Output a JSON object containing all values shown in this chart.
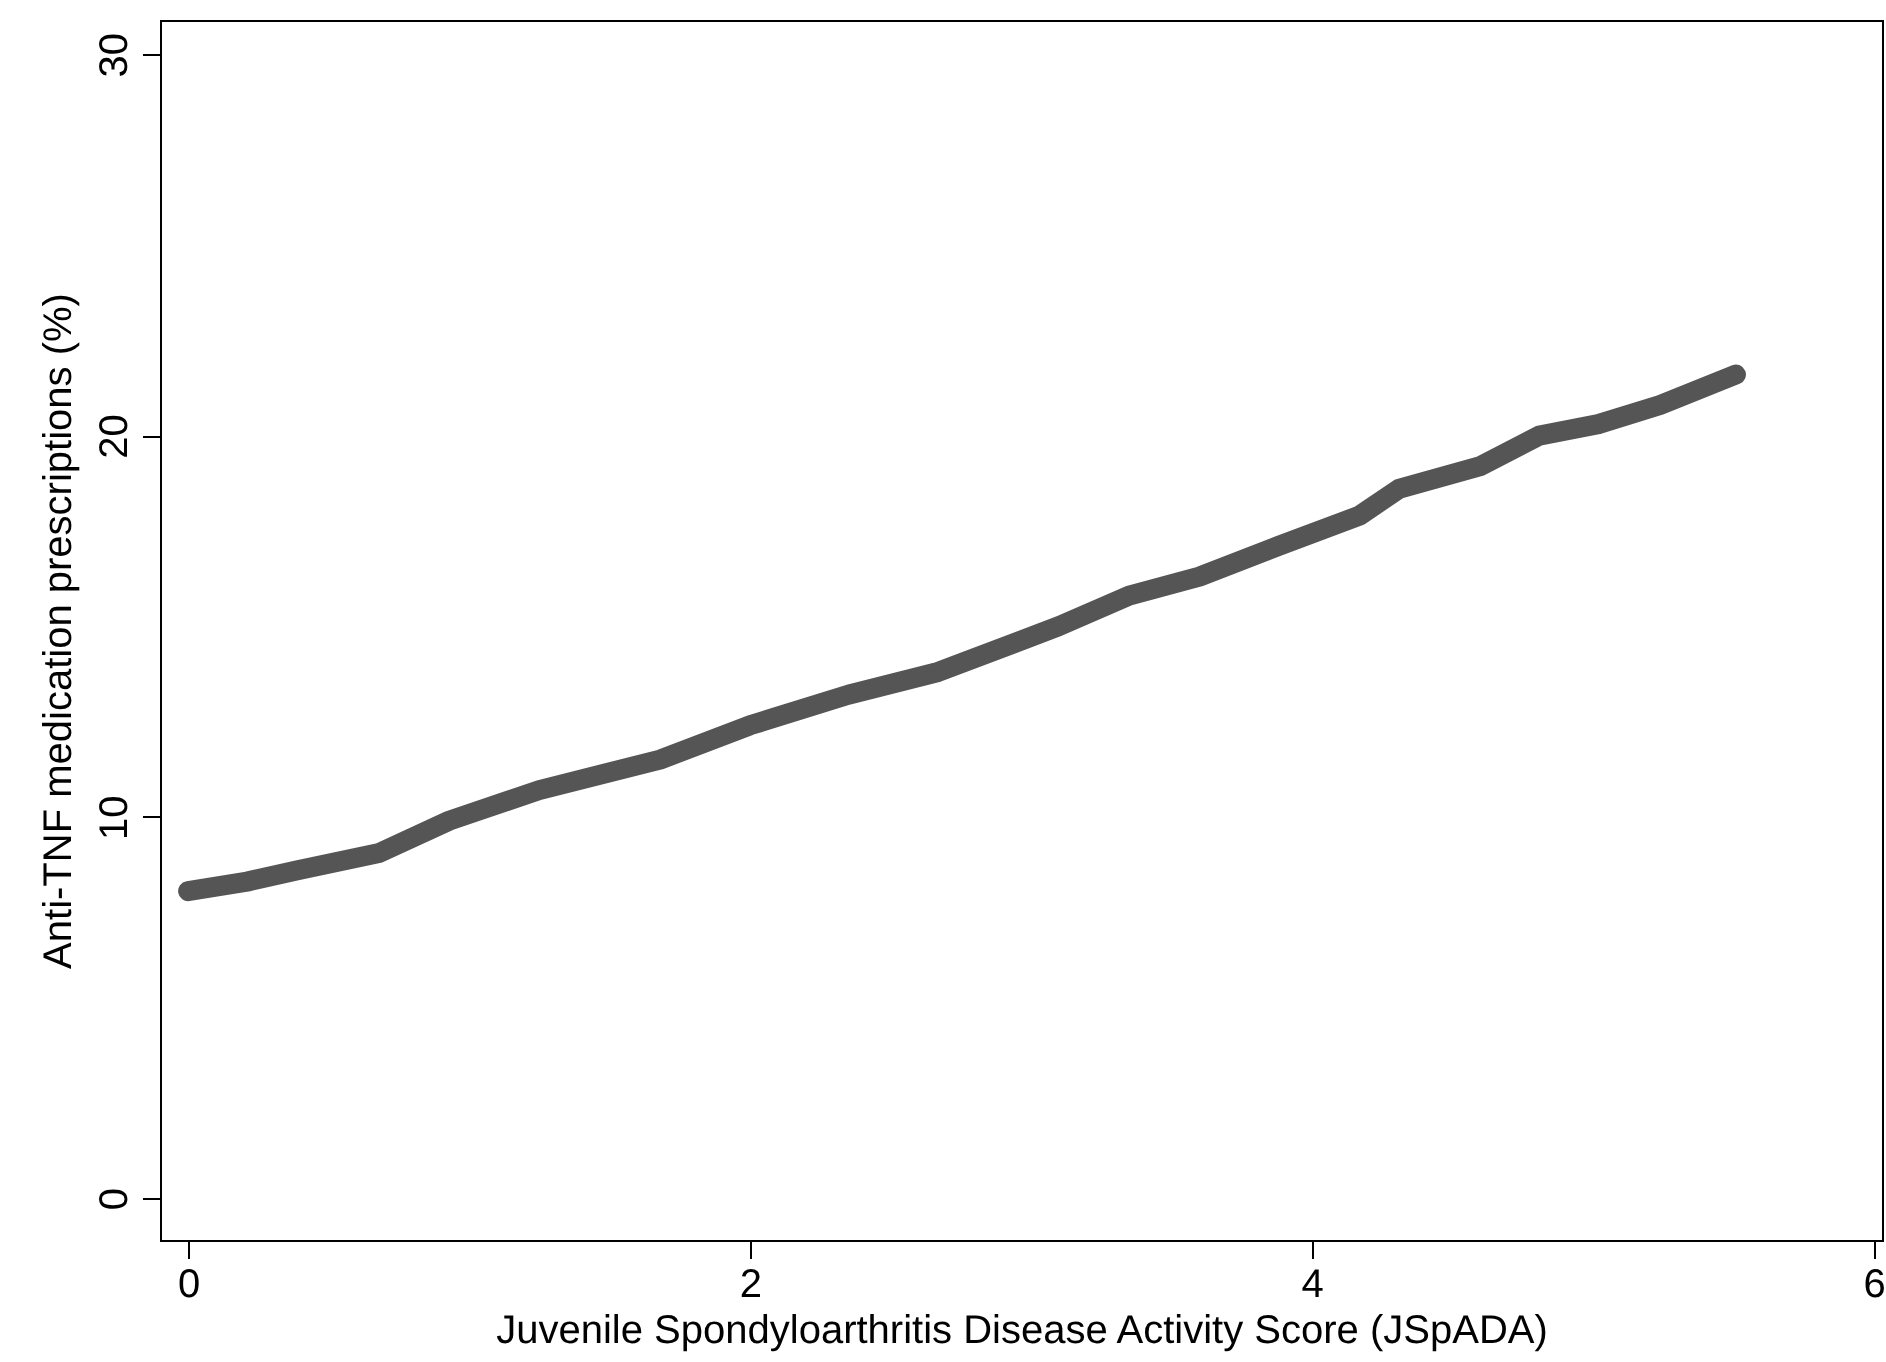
{
  "chart_data": {
    "type": "line",
    "xlabel": "Juvenile Spondyloarthritis Disease Activity Score (JSpADA)",
    "ylabel": "Anti-TNF medication prescriptions (%)",
    "xlim": [
      -0.1,
      6.03
    ],
    "ylim": [
      -1.1,
      30.9
    ],
    "xticks": [
      0,
      2,
      4,
      6
    ],
    "yticks": [
      0,
      10,
      20,
      30
    ],
    "grid": false,
    "line_style": "solid",
    "series": [
      {
        "color": "#555555",
        "x": [
          0,
          0.21,
          0.39,
          0.68,
          0.93,
          1.25,
          1.68,
          2.0,
          2.35,
          2.67,
          3.1,
          3.35,
          3.6,
          3.88,
          4.17,
          4.31,
          4.6,
          4.81,
          5.02,
          5.24,
          5.51
        ],
        "values": [
          8.05,
          8.3,
          8.6,
          9.05,
          9.9,
          10.7,
          11.5,
          12.4,
          13.2,
          13.8,
          15.0,
          15.8,
          16.3,
          17.1,
          17.9,
          18.6,
          19.2,
          20.0,
          20.3,
          20.8,
          21.6
        ]
      }
    ]
  }
}
